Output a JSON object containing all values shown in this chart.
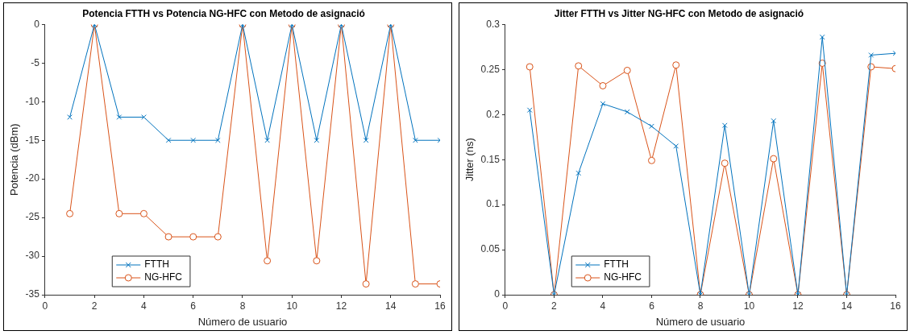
{
  "chart_data": [
    {
      "type": "line",
      "title": "Potencia FTTH vs Potencia NG-HFC con Metodo de asignació",
      "xlabel": "Número de usuario",
      "ylabel": "Potencia (dBm)",
      "x": [
        1,
        2,
        3,
        4,
        5,
        6,
        7,
        8,
        9,
        10,
        11,
        12,
        13,
        14,
        15,
        16
      ],
      "series": [
        {
          "name": "FTTH",
          "color": "#0072bd",
          "marker": "cross",
          "values": [
            -12,
            0,
            -12,
            -12,
            -15,
            -15,
            -15,
            0,
            -15,
            0,
            -15,
            0,
            -15,
            0,
            -15,
            -15
          ]
        },
        {
          "name": "NG-HFC",
          "color": "#d95319",
          "marker": "circle",
          "values": [
            -24.5,
            0,
            -24.5,
            -24.5,
            -27.5,
            -27.5,
            -27.5,
            0,
            -30.6,
            0,
            -30.6,
            0,
            -33.6,
            0,
            -33.6,
            -33.6
          ]
        }
      ],
      "xlim": [
        0,
        16
      ],
      "xticks": [
        0,
        2,
        4,
        6,
        8,
        10,
        12,
        14,
        16
      ],
      "ylim": [
        -35,
        0
      ],
      "yticks": [
        -35,
        -30,
        -25,
        -20,
        -15,
        -10,
        -5,
        0
      ],
      "grid": false,
      "legend": "bottom left"
    },
    {
      "type": "line",
      "title": "Jitter FTTH vs Jitter NG-HFC con Metodo de asignació",
      "xlabel": "Número de usuario",
      "ylabel": "Jitter (ns)",
      "x": [
        1,
        2,
        3,
        4,
        5,
        6,
        7,
        8,
        9,
        10,
        11,
        12,
        13,
        14,
        15,
        16
      ],
      "series": [
        {
          "name": "FTTH",
          "color": "#0072bd",
          "marker": "cross",
          "values": [
            0.205,
            0,
            0.135,
            0.212,
            0.203,
            0.187,
            0.165,
            0,
            0.188,
            0,
            0.193,
            0,
            0.286,
            0,
            0.266,
            0.268
          ]
        },
        {
          "name": "NG-HFC",
          "color": "#d95319",
          "marker": "circle",
          "values": [
            0.253,
            0,
            0.254,
            0.232,
            0.249,
            0.149,
            0.255,
            0,
            0.146,
            0,
            0.151,
            0,
            0.257,
            0,
            0.253,
            0.251
          ]
        }
      ],
      "xlim": [
        0,
        16
      ],
      "xticks": [
        0,
        2,
        4,
        6,
        8,
        10,
        12,
        14,
        16
      ],
      "ylim": [
        0,
        0.3
      ],
      "yticks": [
        0,
        0.05,
        0.1,
        0.15,
        0.2,
        0.25,
        0.3
      ],
      "grid": false,
      "legend": "bottom left"
    }
  ]
}
